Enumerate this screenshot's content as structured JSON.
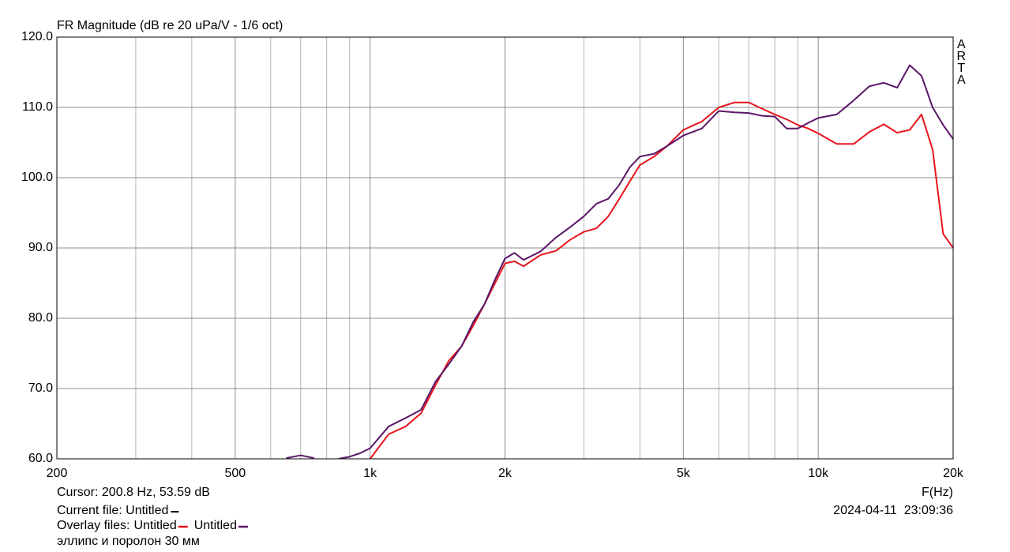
{
  "chart_data": {
    "type": "line",
    "title": "FR Magnitude (dB re 20 uPa/V - 1/6 oct)",
    "xlabel": "F(Hz)",
    "xscale": "log",
    "grid": true,
    "xlim": [
      200,
      20000
    ],
    "ylim": [
      60,
      120
    ],
    "xticks": [
      200,
      500,
      {
        "value": 1000,
        "label": "1k"
      },
      {
        "value": 2000,
        "label": "2k"
      },
      {
        "value": 5000,
        "label": "5k"
      },
      {
        "value": 10000,
        "label": "10k"
      },
      {
        "value": 20000,
        "label": "20k"
      }
    ],
    "xgrid_minor": [
      300,
      400,
      600,
      700,
      800,
      900,
      3000,
      4000,
      6000,
      7000,
      8000,
      9000
    ],
    "yticks": [
      {
        "value": 120,
        "label": "120.0"
      },
      {
        "value": 110,
        "label": "110.0"
      },
      {
        "value": 100,
        "label": "100.0"
      },
      {
        "value": 90,
        "label": "90.0"
      },
      {
        "value": 80,
        "label": "80.0"
      },
      {
        "value": 70,
        "label": "70.0"
      },
      {
        "value": 60,
        "label": "60.0"
      }
    ],
    "x": [
      500,
      550,
      600,
      650,
      700,
      750,
      800,
      850,
      900,
      950,
      1000,
      1100,
      1200,
      1300,
      1400,
      1500,
      1600,
      1700,
      1800,
      1900,
      2000,
      2100,
      2200,
      2400,
      2600,
      2800,
      3000,
      3200,
      3400,
      3600,
      3800,
      4000,
      4300,
      4600,
      5000,
      5500,
      6000,
      6500,
      7000,
      7500,
      8000,
      8500,
      9000,
      9500,
      10000,
      11000,
      12000,
      13000,
      14000,
      15000,
      16000,
      17000,
      18000,
      19000,
      20000
    ],
    "series": [
      {
        "name": "Untitled",
        "color": "#e8141c",
        "values": [
          null,
          null,
          null,
          null,
          null,
          null,
          null,
          null,
          null,
          null,
          60.0,
          63.5,
          64.6,
          66.5,
          70.5,
          74,
          76,
          79,
          82,
          85,
          87.8,
          88.1,
          87.4,
          89,
          89.6,
          91.2,
          92.3,
          92.8,
          94.5,
          97,
          99.5,
          101.8,
          103,
          104.5,
          106.8,
          108,
          110,
          110.7,
          110.7,
          109.8,
          109,
          108.3,
          107.5,
          107,
          106.3,
          104.8,
          104.8,
          106.5,
          107.6,
          106.4,
          106.8,
          109,
          104,
          92,
          90.0
        ]
      },
      {
        "name": "Untitled",
        "color": "#5a1668",
        "values": [
          null,
          60.1,
          null,
          60.1,
          60.5,
          60.1,
          null,
          60.0,
          60.3,
          60.8,
          61.5,
          64.6,
          65.8,
          67.0,
          71.0,
          73.5,
          76,
          79.5,
          82,
          85.5,
          88.5,
          89.3,
          88.3,
          89.5,
          91.5,
          93,
          94.5,
          96.3,
          97.0,
          99,
          101.5,
          103,
          103.4,
          104.5,
          106,
          107,
          109.5,
          109.3,
          109.2,
          108.8,
          108.7,
          107,
          107,
          107.8,
          108.5,
          109,
          111,
          113,
          113.5,
          112.8,
          116,
          114.5,
          110,
          107.5,
          105.5
        ]
      }
    ]
  },
  "cursor": "Cursor: 200.8 Hz, 53.59 dB",
  "current_file": "Current file: Untitled",
  "current_file_color": "#000000",
  "overlay_label": "Overlay files:",
  "timestamp": "2024-04-11  23:09:36",
  "note": "эллипс и поролон 30 мм",
  "watermark": "ARTA"
}
